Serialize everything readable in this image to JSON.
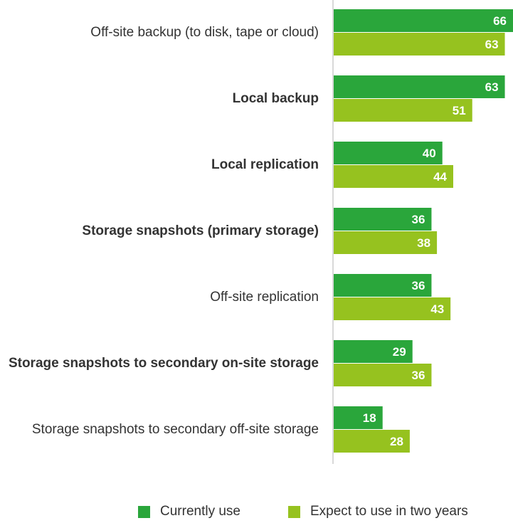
{
  "chart_data": {
    "type": "bar",
    "orientation": "horizontal",
    "categories": [
      "Off-site backup (to disk, tape or cloud)",
      "Local backup",
      "Local replication",
      "Storage snapshots (primary storage)",
      "Off-site replication",
      "Storage snapshots to secondary on-site storage",
      "Storage snapshots to secondary off-site storage"
    ],
    "series": [
      {
        "name": "Currently use",
        "values": [
          66,
          63,
          40,
          36,
          36,
          29,
          18
        ],
        "color": "#2aa63b"
      },
      {
        "name": "Expect to use in two years",
        "values": [
          63,
          51,
          44,
          38,
          43,
          36,
          28
        ],
        "color": "#96c21f"
      }
    ],
    "title": "",
    "xlabel": "",
    "ylabel": "",
    "xlim": [
      0,
      66
    ],
    "grid": false,
    "data_labels": true,
    "legend_position": "bottom"
  }
}
